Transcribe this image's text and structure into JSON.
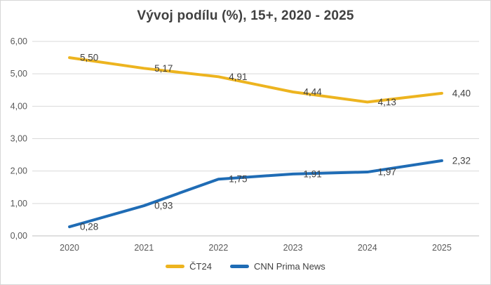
{
  "chart_data": {
    "type": "line",
    "title": "Vývoj podílu (%), 15+, 2020 - 2025",
    "categories": [
      "2020",
      "2021",
      "2022",
      "2023",
      "2024",
      "2025"
    ],
    "series": [
      {
        "name": "ČT24",
        "color": "#EDB41F",
        "values": [
          5.5,
          5.17,
          4.91,
          4.44,
          4.13,
          4.4
        ],
        "labels": [
          "5,50",
          "5,17",
          "4,91",
          "4,44",
          "4,13",
          "4,40"
        ]
      },
      {
        "name": "CNN Prima News",
        "color": "#1F6CB5",
        "values": [
          0.28,
          0.93,
          1.75,
          1.91,
          1.97,
          2.32
        ],
        "labels": [
          "0,28",
          "0,93",
          "1,75",
          "1,91",
          "1,97",
          "2,32"
        ]
      }
    ],
    "xlabel": "",
    "ylabel": "",
    "ylim": [
      0,
      6
    ],
    "yticks": {
      "values": [
        0,
        1,
        2,
        3,
        4,
        5,
        6
      ],
      "labels": [
        "0,00",
        "1,00",
        "2,00",
        "3,00",
        "4,00",
        "5,00",
        "6,00"
      ]
    },
    "grid": true,
    "legend_position": "bottom",
    "colors": {
      "grid": "#D9D9D9",
      "axis_line": "#BFBFBF",
      "title_text": "#404040",
      "tick_text": "#595959",
      "data_label_text": "#404040",
      "background": "#FFFFFF",
      "frame_border": "#D6D6D6"
    }
  }
}
